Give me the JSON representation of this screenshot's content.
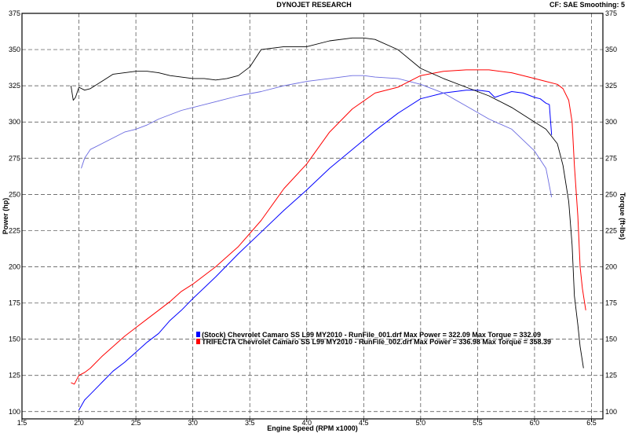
{
  "header": {
    "title": "DYNOJET RESEARCH",
    "corner": "CF: SAE  Smoothing: 5"
  },
  "chart_data": {
    "type": "line",
    "title": "DYNOJET RESEARCH",
    "xlabel": "Engine Speed (RPM x1000)",
    "ylabel_left": "Power (hp)",
    "ylabel_right": "Torque (ft-lbs)",
    "xlim": [
      1.5,
      6.6
    ],
    "ylim": [
      95,
      375
    ],
    "xticks": [
      1.5,
      2.0,
      2.5,
      3.0,
      3.5,
      4.0,
      4.5,
      5.0,
      5.5,
      6.0,
      6.5
    ],
    "xtick_labels": [
      "1.5",
      "2.0",
      "2.5",
      "3.0",
      "3.5",
      "4.0",
      "4.5",
      "5.0",
      "5.5",
      "6.0",
      "6.5"
    ],
    "yticks": [
      100,
      125,
      150,
      175,
      200,
      225,
      250,
      275,
      300,
      325,
      350,
      375
    ],
    "ytick_labels": [
      "100",
      "125",
      "150",
      "175",
      "200",
      "225",
      "250",
      "275",
      "300",
      "325",
      "350",
      "375"
    ],
    "grid": true,
    "legend_placement": "center",
    "legend": [
      {
        "text": "(Stock) Chevrolet Camaro SS L99 MY2010 - RunFile_001.drf Max Power = 322.09     Max Torque = 332.09",
        "color": "#0000ff"
      },
      {
        "text": "TRIFECTA Chevrolet Camaro SS L99 MY2010 - RunFile_002.drf Max Power = 336.98     Max Torque = 358.39",
        "color": "#ff0000"
      }
    ],
    "series": [
      {
        "kind": "power",
        "run": "stock",
        "color": "#0000ff",
        "width": 1,
        "x": [
          2.0,
          2.05,
          2.1,
          2.2,
          2.3,
          2.4,
          2.5,
          2.6,
          2.7,
          2.8,
          2.9,
          3.0,
          3.2,
          3.4,
          3.6,
          3.8,
          4.0,
          4.2,
          4.4,
          4.6,
          4.8,
          5.0,
          5.2,
          5.4,
          5.5,
          5.6,
          5.65,
          5.8,
          5.9,
          6.0,
          6.05,
          6.1,
          6.13,
          6.15
        ],
        "y": [
          101,
          108,
          112,
          120,
          128,
          134,
          141,
          148,
          154,
          163,
          170,
          178,
          193,
          209,
          224,
          239,
          253,
          268,
          281,
          294,
          306,
          316,
          320,
          322,
          322,
          321,
          317,
          321,
          320,
          317,
          316,
          313,
          312,
          291
        ]
      },
      {
        "kind": "torque",
        "run": "stock",
        "color": "#6a6ae0",
        "width": 0.9,
        "x": [
          2.02,
          2.05,
          2.1,
          2.2,
          2.3,
          2.4,
          2.5,
          2.6,
          2.7,
          2.8,
          2.9,
          3.0,
          3.2,
          3.4,
          3.6,
          3.8,
          4.0,
          4.2,
          4.4,
          4.5,
          4.6,
          4.8,
          5.0,
          5.2,
          5.4,
          5.6,
          5.8,
          6.0,
          6.1,
          6.15
        ],
        "y": [
          268,
          275,
          281,
          285,
          289,
          293,
          295,
          298,
          302,
          305,
          308,
          310,
          314,
          318,
          321,
          325,
          328,
          330,
          332,
          332,
          331,
          330,
          326,
          320,
          311,
          302,
          295,
          280,
          268,
          248
        ]
      },
      {
        "kind": "power",
        "run": "trifecta",
        "color": "#ff0000",
        "width": 1,
        "x": [
          1.93,
          1.96,
          2.0,
          2.05,
          2.1,
          2.2,
          2.3,
          2.4,
          2.5,
          2.6,
          2.7,
          2.8,
          2.9,
          3.0,
          3.2,
          3.4,
          3.6,
          3.8,
          4.0,
          4.2,
          4.4,
          4.6,
          4.8,
          5.0,
          5.2,
          5.4,
          5.6,
          5.8,
          6.0,
          6.1,
          6.2,
          6.25,
          6.3,
          6.33,
          6.35,
          6.38,
          6.4,
          6.42,
          6.45
        ],
        "y": [
          120,
          119,
          125,
          127,
          130,
          138,
          145,
          152,
          158,
          164,
          170,
          176,
          183,
          188,
          200,
          214,
          232,
          254,
          271,
          293,
          309,
          320,
          324,
          332,
          335,
          336,
          336,
          334,
          330,
          328,
          326,
          323,
          315,
          300,
          270,
          235,
          200,
          185,
          170
        ]
      },
      {
        "kind": "torque",
        "run": "trifecta",
        "color": "#000000",
        "width": 0.9,
        "x": [
          1.93,
          1.95,
          1.97,
          2.0,
          2.05,
          2.1,
          2.2,
          2.3,
          2.4,
          2.5,
          2.6,
          2.7,
          2.8,
          2.9,
          3.0,
          3.1,
          3.2,
          3.3,
          3.4,
          3.5,
          3.6,
          3.8,
          4.0,
          4.2,
          4.4,
          4.5,
          4.6,
          4.8,
          5.0,
          5.2,
          5.4,
          5.6,
          5.8,
          6.0,
          6.1,
          6.2,
          6.25,
          6.3,
          6.33,
          6.35,
          6.38,
          6.4,
          6.43
        ],
        "y": [
          325,
          315,
          317,
          324,
          322,
          323,
          328,
          333,
          334,
          335,
          335,
          334,
          332,
          331,
          330,
          330,
          329,
          330,
          332,
          338,
          350,
          352,
          352,
          356,
          358,
          358,
          357,
          350,
          337,
          330,
          324,
          318,
          310,
          300,
          295,
          285,
          270,
          245,
          215,
          180,
          160,
          145,
          130
        ]
      }
    ]
  }
}
